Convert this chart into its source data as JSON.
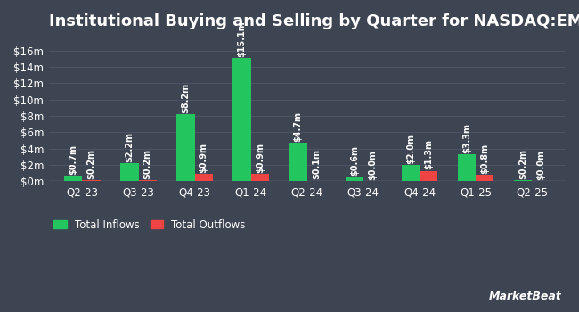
{
  "title": "Institutional Buying and Selling by Quarter for NASDAQ:EMXF",
  "quarters": [
    "Q2-23",
    "Q3-23",
    "Q4-23",
    "Q1-24",
    "Q2-24",
    "Q3-24",
    "Q4-24",
    "Q1-25",
    "Q2-25"
  ],
  "inflows": [
    0.7,
    2.2,
    8.2,
    15.1,
    4.7,
    0.6,
    2.0,
    3.3,
    0.2
  ],
  "outflows": [
    0.2,
    0.2,
    0.9,
    0.9,
    0.1,
    0.0,
    1.3,
    0.8,
    0.0
  ],
  "inflow_labels": [
    "$0.7m",
    "$2.2m",
    "$8.2m",
    "$15.1m",
    "$4.7m",
    "$0.6m",
    "$2.0m",
    "$3.3m",
    "$0.2m"
  ],
  "outflow_labels": [
    "$0.2m",
    "$0.2m",
    "$0.9m",
    "$0.9m",
    "$0.1m",
    "$0.0m",
    "$1.3m",
    "$0.8m",
    "$0.0m"
  ],
  "inflow_color": "#22c55e",
  "outflow_color": "#ef4444",
  "bg_color": "#3d4452",
  "plot_bg_color": "#3d4452",
  "text_color": "#ffffff",
  "grid_color": "#4d5465",
  "legend_inflow": "Total Inflows",
  "legend_outflow": "Total Outflows",
  "yticks": [
    0,
    2,
    4,
    6,
    8,
    10,
    12,
    14,
    16
  ],
  "ytick_labels": [
    "$0m",
    "$2m",
    "$4m",
    "$6m",
    "$8m",
    "$10m",
    "$12m",
    "$14m",
    "$16m"
  ],
  "ylim": [
    0,
    17.5
  ],
  "bar_width": 0.32,
  "title_fontsize": 13,
  "tick_fontsize": 8.5,
  "label_fontsize": 7,
  "legend_fontsize": 8.5,
  "marketbeat_fontsize": 9
}
